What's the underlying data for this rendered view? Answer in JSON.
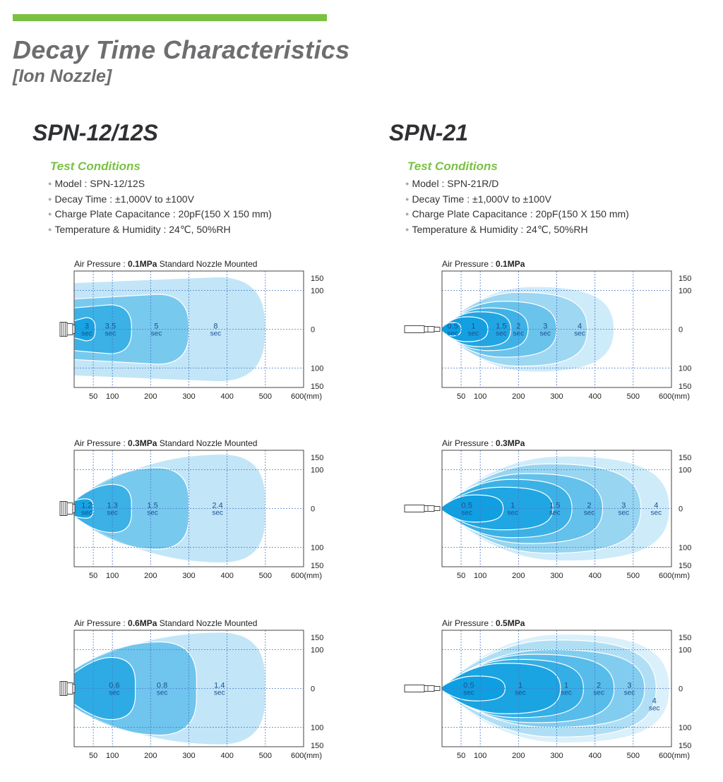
{
  "page": {
    "title": "Decay Time Characteristics",
    "subtitle": "[Ion Nozzle]",
    "accent_color": "#7ac143"
  },
  "sections": [
    {
      "model": "SPN-12/12S",
      "conditions_title": "Test Conditions",
      "conditions": [
        "Model : SPN-12/12S",
        "Decay Time : ±1,000V to ±100V",
        "Charge Plate Capacitance : 20pF(150 X 150 mm)",
        "Temperature & Humidity : 24℃, 50%RH"
      ]
    },
    {
      "model": "SPN-21",
      "conditions_title": "Test Conditions",
      "conditions": [
        "Model : SPN-21R/D",
        "Decay Time : ±1,000V to ±100V",
        "Charge Plate Capacitance : 20pF(150 X 150 mm)",
        "Temperature & Humidity : 24℃, 50%RH"
      ]
    }
  ],
  "chart_data": [
    {
      "type": "area",
      "title": {
        "prefix": "Air Pressure : ",
        "value": "0.1MPa",
        "suffix": " Standard Nozzle Mounted"
      },
      "nozzle": "SPN-12",
      "x_ticks": [
        50,
        100,
        200,
        300,
        400,
        500
      ],
      "x_end_label": "600(mm)",
      "xlim": [
        0,
        600
      ],
      "y_ticks": [
        150,
        100,
        0,
        100,
        150
      ],
      "ylim": [
        -150,
        150
      ],
      "regions": [
        {
          "label": "8",
          "unit": "sec",
          "label_x": 370,
          "shape": "spread",
          "x_end": 500,
          "half_width": 135,
          "root_half_width": 120,
          "opacity": 0.25
        },
        {
          "label": "5",
          "unit": "sec",
          "label_x": 215,
          "shape": "spread",
          "x_end": 300,
          "half_width": 90,
          "root_half_width": 78,
          "opacity": 0.4
        },
        {
          "label": "3.5",
          "unit": "sec",
          "label_x": 95,
          "shape": "spread",
          "x_end": 150,
          "half_width": 63,
          "root_half_width": 55,
          "opacity": 0.55
        },
        {
          "label": "3",
          "unit": "sec",
          "label_x": 33,
          "shape": "spread",
          "x_end": 55,
          "half_width": 30,
          "root_half_width": 22,
          "opacity": 0.7
        }
      ]
    },
    {
      "type": "area",
      "title": {
        "prefix": "Air Pressure : ",
        "value": "0.3MPa",
        "suffix": " Standard Nozzle Mounted"
      },
      "nozzle": "SPN-12",
      "x_ticks": [
        50,
        100,
        200,
        300,
        400,
        500
      ],
      "x_end_label": "600(mm)",
      "xlim": [
        0,
        600
      ],
      "y_ticks": [
        150,
        100,
        0,
        100,
        150
      ],
      "ylim": [
        -150,
        150
      ],
      "regions": [
        {
          "label": "2.4",
          "unit": "sec",
          "label_x": 375,
          "shape": "cone",
          "x_end": 500,
          "half_width": 140,
          "root_half_width": 20,
          "opacity": 0.25
        },
        {
          "label": "1.5",
          "unit": "sec",
          "label_x": 205,
          "shape": "cone",
          "x_end": 300,
          "half_width": 105,
          "root_half_width": 20,
          "opacity": 0.4
        },
        {
          "label": "1.3",
          "unit": "sec",
          "label_x": 100,
          "shape": "cone",
          "x_end": 150,
          "half_width": 62,
          "root_half_width": 20,
          "opacity": 0.55
        },
        {
          "label": "1.2",
          "unit": "sec",
          "label_x": 33,
          "shape": "cone",
          "x_end": 50,
          "half_width": 25,
          "root_half_width": 20,
          "opacity": 0.7
        }
      ]
    },
    {
      "type": "area",
      "title": {
        "prefix": "Air Pressure : ",
        "value": "0.6MPa",
        "suffix": " Standard Nozzle Mounted"
      },
      "nozzle": "SPN-12",
      "x_ticks": [
        50,
        100,
        200,
        300,
        400,
        500
      ],
      "x_end_label": "600(mm)",
      "xlim": [
        0,
        600
      ],
      "y_ticks": [
        150,
        100,
        0,
        100,
        150
      ],
      "ylim": [
        -150,
        150
      ],
      "regions": [
        {
          "label": "1.4",
          "unit": "sec",
          "label_x": 380,
          "shape": "cone",
          "x_end": 500,
          "half_width": 145,
          "root_half_width": 50,
          "opacity": 0.25
        },
        {
          "label": "0.8",
          "unit": "sec",
          "label_x": 230,
          "shape": "cone",
          "x_end": 320,
          "half_width": 120,
          "root_half_width": 50,
          "opacity": 0.45
        },
        {
          "label": "0.6",
          "unit": "sec",
          "label_x": 105,
          "shape": "cone",
          "x_end": 160,
          "half_width": 80,
          "root_half_width": 40,
          "opacity": 0.65
        }
      ]
    },
    {
      "type": "area",
      "title": {
        "prefix": "Air Pressure : ",
        "value": "0.1MPa",
        "suffix": ""
      },
      "nozzle": "SPN-21",
      "x_ticks": [
        50,
        100,
        200,
        300,
        400,
        500
      ],
      "x_end_label": "600(mm)",
      "xlim": [
        0,
        600
      ],
      "y_ticks": [
        150,
        100,
        0,
        100,
        150
      ],
      "ylim": [
        -150,
        150
      ],
      "regions": [
        {
          "label": "",
          "unit": "",
          "label_x": 0,
          "shape": "teardrop",
          "x_end": 450,
          "half_width": 110,
          "root_half_width": 5,
          "opacity": 0.2
        },
        {
          "label": "4",
          "unit": "sec",
          "label_x": 360,
          "shape": "teardrop",
          "x_end": 380,
          "half_width": 95,
          "root_half_width": 5,
          "opacity": 0.25
        },
        {
          "label": "3",
          "unit": "sec",
          "label_x": 270,
          "shape": "teardrop",
          "x_end": 300,
          "half_width": 72,
          "root_half_width": 5,
          "opacity": 0.35
        },
        {
          "label": "2",
          "unit": "sec",
          "label_x": 200,
          "shape": "teardrop",
          "x_end": 225,
          "half_width": 55,
          "root_half_width": 5,
          "opacity": 0.45
        },
        {
          "label": "1.5",
          "unit": "sec",
          "label_x": 155,
          "shape": "teardrop",
          "x_end": 180,
          "half_width": 45,
          "root_half_width": 5,
          "opacity": 0.55
        },
        {
          "label": "1",
          "unit": "sec",
          "label_x": 82,
          "shape": "teardrop",
          "x_end": 120,
          "half_width": 32,
          "root_half_width": 5,
          "opacity": 0.65
        },
        {
          "label": "0.5",
          "unit": "sec",
          "label_x": 28,
          "shape": "teardrop",
          "x_end": 50,
          "half_width": 17,
          "root_half_width": 5,
          "opacity": 0.75
        }
      ]
    },
    {
      "type": "area",
      "title": {
        "prefix": "Air Pressure : ",
        "value": "0.3MPa",
        "suffix": ""
      },
      "nozzle": "SPN-21",
      "x_ticks": [
        50,
        100,
        200,
        300,
        400,
        500
      ],
      "x_end_label": "600(mm)",
      "xlim": [
        0,
        600
      ],
      "y_ticks": [
        150,
        100,
        0,
        100,
        150
      ],
      "ylim": [
        -150,
        150
      ],
      "regions": [
        {
          "label": "4",
          "unit": "sec",
          "label_x": 560,
          "shape": "teardrop",
          "x_end": 595,
          "half_width": 135,
          "root_half_width": 5,
          "opacity": 0.2
        },
        {
          "label": "3",
          "unit": "sec",
          "label_x": 475,
          "shape": "teardrop",
          "x_end": 520,
          "half_width": 115,
          "root_half_width": 5,
          "opacity": 0.28
        },
        {
          "label": "2",
          "unit": "sec",
          "label_x": 385,
          "shape": "teardrop",
          "x_end": 420,
          "half_width": 90,
          "root_half_width": 5,
          "opacity": 0.36
        },
        {
          "label": "1.5",
          "unit": "sec",
          "label_x": 295,
          "shape": "teardrop",
          "x_end": 340,
          "half_width": 75,
          "root_half_width": 5,
          "opacity": 0.45
        },
        {
          "label": "1",
          "unit": "sec",
          "label_x": 185,
          "shape": "teardrop",
          "x_end": 290,
          "half_width": 55,
          "root_half_width": 5,
          "opacity": 0.55
        },
        {
          "label": "0.5",
          "unit": "sec",
          "label_x": 65,
          "shape": "teardrop",
          "x_end": 160,
          "half_width": 35,
          "root_half_width": 5,
          "opacity": 0.7
        }
      ]
    },
    {
      "type": "area",
      "title": {
        "prefix": "Air Pressure : ",
        "value": "0.5MPa",
        "suffix": ""
      },
      "nozzle": "SPN-21",
      "x_ticks": [
        50,
        100,
        200,
        300,
        400,
        500
      ],
      "x_end_label": "600(mm)",
      "xlim": [
        0,
        600
      ],
      "y_ticks": [
        150,
        100,
        0,
        100,
        150
      ],
      "ylim": [
        -150,
        150
      ],
      "regions": [
        {
          "label": "",
          "unit": "",
          "label_x": 0,
          "shape": "teardrop",
          "x_end": 595,
          "half_width": 140,
          "root_half_width": 5,
          "opacity": 0.15
        },
        {
          "label": "4",
          "unit": "sec",
          "label_x": 555,
          "shape": "teardrop",
          "x_end": 560,
          "half_width": 125,
          "root_half_width": 5,
          "opacity": 0.2,
          "label_y": -40
        },
        {
          "label": "3",
          "unit": "sec",
          "label_x": 490,
          "shape": "teardrop",
          "x_end": 530,
          "half_width": 100,
          "root_half_width": 5,
          "opacity": 0.28
        },
        {
          "label": "2",
          "unit": "sec",
          "label_x": 410,
          "shape": "teardrop",
          "x_end": 450,
          "half_width": 88,
          "root_half_width": 5,
          "opacity": 0.36
        },
        {
          "label": "1",
          "unit": "sec",
          "label_x": 325,
          "shape": "teardrop",
          "x_end": 370,
          "half_width": 75,
          "root_half_width": 5,
          "opacity": 0.45
        },
        {
          "label": "1",
          "unit": "sec",
          "label_x": 205,
          "shape": "teardrop",
          "x_end": 310,
          "half_width": 65,
          "root_half_width": 5,
          "opacity": 0.6
        },
        {
          "label": "0.5",
          "unit": "sec",
          "label_x": 70,
          "shape": "teardrop",
          "x_end": 165,
          "half_width": 32,
          "root_half_width": 5,
          "opacity": 0.75
        }
      ]
    }
  ]
}
